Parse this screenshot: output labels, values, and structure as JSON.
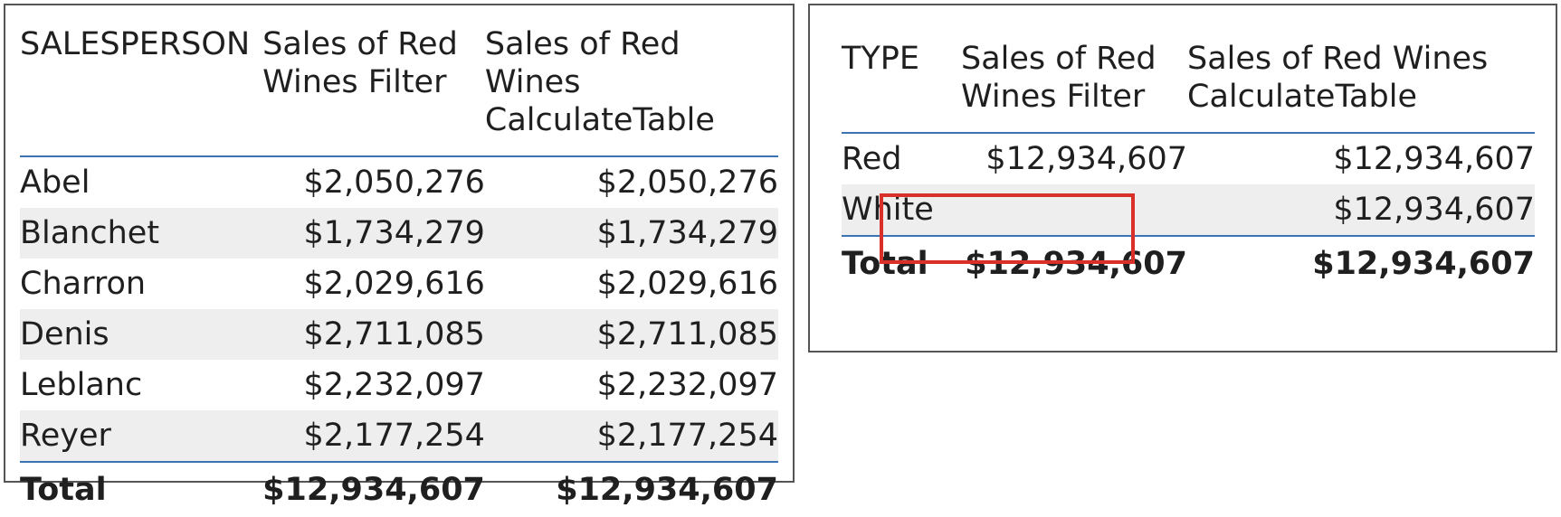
{
  "left_table": {
    "columns": [
      "SALESPERSON",
      "Sales of Red Wines Filter",
      "Sales of Red Wines CalculateTable"
    ],
    "header_lines": [
      [
        "SALESPERSON"
      ],
      [
        "Sales of Red",
        "Wines Filter"
      ],
      [
        "Sales of Red Wines",
        "CalculateTable"
      ]
    ],
    "rows": [
      {
        "name": "Abel",
        "filter": "$2,050,276",
        "calc": "$2,050,276"
      },
      {
        "name": "Blanchet",
        "filter": "$1,734,279",
        "calc": "$1,734,279"
      },
      {
        "name": "Charron",
        "filter": "$2,029,616",
        "calc": "$2,029,616"
      },
      {
        "name": "Denis",
        "filter": "$2,711,085",
        "calc": "$2,711,085"
      },
      {
        "name": "Leblanc",
        "filter": "$2,232,097",
        "calc": "$2,232,097"
      },
      {
        "name": "Reyer",
        "filter": "$2,177,254",
        "calc": "$2,177,254"
      }
    ],
    "total": {
      "label": "Total",
      "filter": "$12,934,607",
      "calc": "$12,934,607"
    }
  },
  "right_table": {
    "header_lines": [
      [
        "TYPE"
      ],
      [
        "Sales of Red",
        "Wines Filter"
      ],
      [
        "Sales of Red Wines",
        "CalculateTable"
      ]
    ],
    "rows": [
      {
        "name": "Red",
        "filter": "$12,934,607",
        "calc": "$12,934,607"
      },
      {
        "name": "White",
        "filter": "",
        "calc": "$12,934,607"
      }
    ],
    "total": {
      "label": "Total",
      "filter": "$12,934,607",
      "calc": "$12,934,607"
    },
    "highlight_color": "#d9302a"
  },
  "accent_color": "#3c73b4"
}
